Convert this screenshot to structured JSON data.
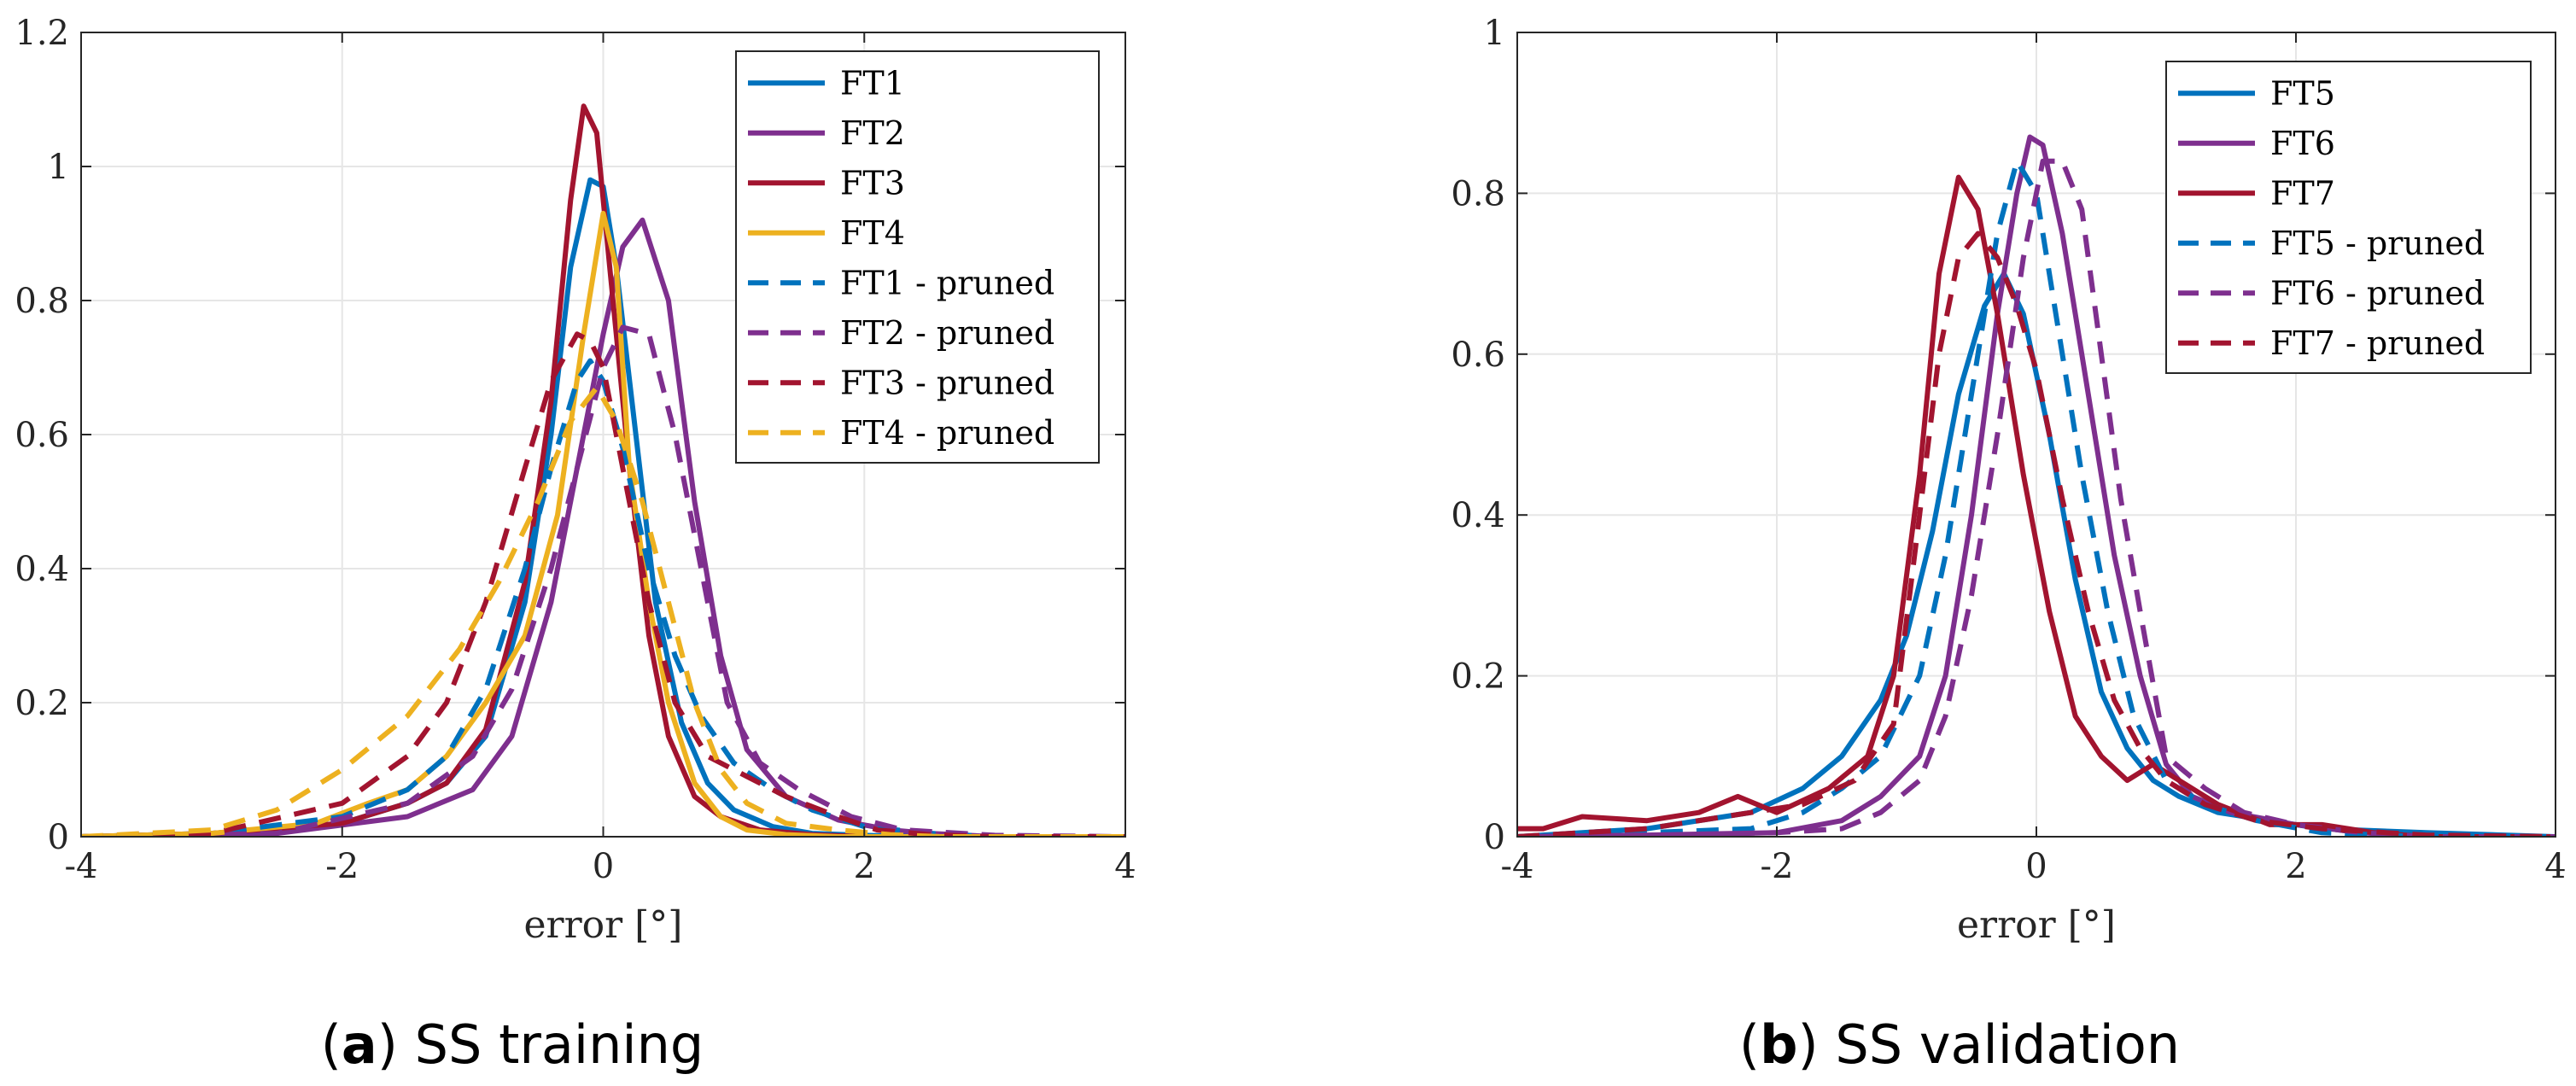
{
  "figure": {
    "captions": [
      {
        "letter": "a",
        "open": "(",
        "close": ")",
        "text": " SS training"
      },
      {
        "letter": "b",
        "open": "(",
        "close": ")",
        "text": " SS validation"
      }
    ]
  },
  "chart_data": [
    {
      "type": "line",
      "title": "",
      "xlabel": "error [°]",
      "ylabel": "",
      "xlim": [
        -4,
        4
      ],
      "ylim": [
        0,
        1.2
      ],
      "xticks": [
        "-4",
        "-2",
        "0",
        "2",
        "4"
      ],
      "yticks": [
        "0",
        "0.2",
        "0.4",
        "0.6",
        "0.8",
        "1",
        "1.2"
      ],
      "grid": true,
      "legend_position": "top-right",
      "series": [
        {
          "name": "FT1",
          "color": "#0072BD",
          "dash": "solid",
          "x": [
            -4,
            -3,
            -2,
            -1.5,
            -1.2,
            -0.9,
            -0.6,
            -0.4,
            -0.25,
            -0.1,
            0,
            0.1,
            0.25,
            0.4,
            0.6,
            0.8,
            1.0,
            1.3,
            1.6,
            2.0,
            2.5,
            3,
            4
          ],
          "y": [
            0,
            0.005,
            0.02,
            0.05,
            0.08,
            0.15,
            0.35,
            0.6,
            0.85,
            0.98,
            0.97,
            0.85,
            0.6,
            0.35,
            0.17,
            0.08,
            0.04,
            0.015,
            0.005,
            0.002,
            0,
            0,
            0
          ]
        },
        {
          "name": "FT2",
          "color": "#7E2F8E",
          "dash": "solid",
          "x": [
            -4,
            -2.5,
            -1.5,
            -1.0,
            -0.7,
            -0.4,
            -0.2,
            0,
            0.15,
            0.3,
            0.5,
            0.7,
            0.9,
            1.1,
            1.4,
            1.8,
            2.2,
            2.5,
            3,
            4
          ],
          "y": [
            0,
            0.005,
            0.03,
            0.07,
            0.15,
            0.35,
            0.55,
            0.75,
            0.88,
            0.92,
            0.8,
            0.5,
            0.27,
            0.13,
            0.06,
            0.025,
            0.01,
            0.005,
            0,
            0
          ]
        },
        {
          "name": "FT3",
          "color": "#A2142F",
          "dash": "solid",
          "x": [
            -4,
            -3,
            -2,
            -1.5,
            -1.2,
            -0.9,
            -0.6,
            -0.4,
            -0.25,
            -0.15,
            -0.05,
            0.05,
            0.2,
            0.35,
            0.5,
            0.7,
            0.9,
            1.2,
            1.6,
            2.0,
            3,
            4
          ],
          "y": [
            0,
            0.005,
            0.02,
            0.05,
            0.08,
            0.16,
            0.38,
            0.65,
            0.95,
            1.09,
            1.05,
            0.85,
            0.55,
            0.3,
            0.15,
            0.06,
            0.03,
            0.01,
            0.003,
            0,
            0,
            0
          ]
        },
        {
          "name": "FT4",
          "color": "#EDB120",
          "dash": "solid",
          "x": [
            -4,
            -3,
            -2.2,
            -1.8,
            -1.5,
            -1.2,
            -0.9,
            -0.6,
            -0.35,
            -0.15,
            0,
            0.1,
            0.2,
            0.35,
            0.5,
            0.7,
            0.9,
            1.1,
            1.4,
            1.8,
            2.5,
            4
          ],
          "y": [
            0,
            0.005,
            0.02,
            0.05,
            0.07,
            0.12,
            0.2,
            0.3,
            0.48,
            0.75,
            0.93,
            0.85,
            0.55,
            0.35,
            0.2,
            0.08,
            0.03,
            0.01,
            0.003,
            0,
            0,
            0
          ]
        },
        {
          "name": "FT1 - pruned",
          "color": "#0072BD",
          "dash": "dashed",
          "x": [
            -4,
            -3,
            -2,
            -1.5,
            -1.2,
            -0.9,
            -0.6,
            -0.4,
            -0.2,
            -0.1,
            0,
            0.15,
            0.35,
            0.55,
            0.75,
            1.0,
            1.3,
            1.6,
            2.0,
            2.5,
            3,
            4
          ],
          "y": [
            0,
            0.005,
            0.03,
            0.07,
            0.12,
            0.22,
            0.4,
            0.55,
            0.68,
            0.71,
            0.68,
            0.58,
            0.4,
            0.27,
            0.18,
            0.11,
            0.07,
            0.04,
            0.015,
            0.005,
            0,
            0
          ]
        },
        {
          "name": "FT2 - pruned",
          "color": "#7E2F8E",
          "dash": "dashed",
          "x": [
            -4,
            -2.5,
            -1.5,
            -1.0,
            -0.7,
            -0.4,
            -0.2,
            0,
            0.15,
            0.35,
            0.55,
            0.75,
            0.95,
            1.2,
            1.5,
            1.9,
            2.3,
            3,
            4
          ],
          "y": [
            0,
            0.005,
            0.05,
            0.12,
            0.22,
            0.4,
            0.55,
            0.7,
            0.76,
            0.75,
            0.6,
            0.4,
            0.2,
            0.11,
            0.07,
            0.03,
            0.01,
            0.002,
            0
          ]
        },
        {
          "name": "FT3 - pruned",
          "color": "#A2142F",
          "dash": "dashed",
          "x": [
            -4,
            -3,
            -2,
            -1.5,
            -1.2,
            -0.9,
            -0.6,
            -0.4,
            -0.2,
            -0.1,
            0,
            0.15,
            0.35,
            0.55,
            0.8,
            1.1,
            1.4,
            1.8,
            2.1,
            2.5,
            3,
            4
          ],
          "y": [
            0,
            0.005,
            0.05,
            0.12,
            0.2,
            0.35,
            0.55,
            0.68,
            0.75,
            0.74,
            0.7,
            0.55,
            0.35,
            0.2,
            0.12,
            0.09,
            0.06,
            0.03,
            0.01,
            0.003,
            0,
            0
          ]
        },
        {
          "name": "FT4 - pruned",
          "color": "#EDB120",
          "dash": "dashed",
          "x": [
            -4,
            -3,
            -2.5,
            -2,
            -1.5,
            -1.1,
            -0.8,
            -0.5,
            -0.25,
            -0.05,
            0.1,
            0.3,
            0.5,
            0.7,
            0.9,
            1.1,
            1.4,
            1.8,
            2.2,
            2.6,
            4
          ],
          "y": [
            0,
            0.01,
            0.04,
            0.1,
            0.18,
            0.28,
            0.38,
            0.5,
            0.62,
            0.67,
            0.62,
            0.5,
            0.35,
            0.2,
            0.1,
            0.05,
            0.02,
            0.01,
            0.003,
            0,
            0
          ]
        }
      ]
    },
    {
      "type": "line",
      "title": "",
      "xlabel": "error [°]",
      "ylabel": "",
      "xlim": [
        -4,
        4
      ],
      "ylim": [
        0,
        1
      ],
      "xticks": [
        "-4",
        "-2",
        "0",
        "2",
        "4"
      ],
      "yticks": [
        "0",
        "0.2",
        "0.4",
        "0.6",
        "0.8",
        "1"
      ],
      "grid": true,
      "legend_position": "top-right",
      "series": [
        {
          "name": "FT5",
          "color": "#0072BD",
          "dash": "solid",
          "x": [
            -4,
            -3,
            -2.2,
            -1.8,
            -1.5,
            -1.2,
            -1.0,
            -0.8,
            -0.6,
            -0.4,
            -0.25,
            -0.1,
            0.1,
            0.3,
            0.5,
            0.7,
            0.9,
            1.1,
            1.4,
            1.8,
            2.2,
            3,
            4
          ],
          "y": [
            0,
            0.01,
            0.03,
            0.06,
            0.1,
            0.17,
            0.25,
            0.38,
            0.55,
            0.66,
            0.7,
            0.65,
            0.5,
            0.32,
            0.18,
            0.11,
            0.07,
            0.05,
            0.03,
            0.02,
            0.01,
            0.005,
            0
          ]
        },
        {
          "name": "FT6",
          "color": "#7E2F8E",
          "dash": "solid",
          "x": [
            -4,
            -3,
            -2,
            -1.5,
            -1.2,
            -0.9,
            -0.7,
            -0.5,
            -0.3,
            -0.15,
            -0.05,
            0.05,
            0.2,
            0.4,
            0.6,
            0.8,
            1.0,
            1.2,
            1.5,
            2.0,
            2.5,
            3,
            4
          ],
          "y": [
            0,
            0.002,
            0.005,
            0.02,
            0.05,
            0.1,
            0.2,
            0.4,
            0.65,
            0.8,
            0.87,
            0.86,
            0.75,
            0.55,
            0.35,
            0.2,
            0.09,
            0.05,
            0.03,
            0.015,
            0.005,
            0,
            0
          ]
        },
        {
          "name": "FT7",
          "color": "#A2142F",
          "dash": "solid",
          "x": [
            -4,
            -3.8,
            -3.5,
            -3,
            -2.6,
            -2.3,
            -2,
            -1.6,
            -1.3,
            -1.1,
            -0.9,
            -0.75,
            -0.6,
            -0.45,
            -0.3,
            -0.1,
            0.1,
            0.3,
            0.5,
            0.7,
            0.9,
            1.1,
            1.4,
            1.8,
            2.2,
            2.6,
            3,
            4
          ],
          "y": [
            0.01,
            0.01,
            0.025,
            0.02,
            0.03,
            0.05,
            0.03,
            0.06,
            0.1,
            0.2,
            0.45,
            0.7,
            0.82,
            0.78,
            0.65,
            0.45,
            0.28,
            0.15,
            0.1,
            0.07,
            0.09,
            0.07,
            0.04,
            0.015,
            0.015,
            0.005,
            0,
            0
          ]
        },
        {
          "name": "FT5 - pruned",
          "color": "#0072BD",
          "dash": "dashed",
          "x": [
            -4,
            -3,
            -2.2,
            -1.8,
            -1.5,
            -1.2,
            -0.9,
            -0.7,
            -0.5,
            -0.3,
            -0.15,
            0,
            0.15,
            0.35,
            0.55,
            0.75,
            1.0,
            1.3,
            1.7,
            2.2,
            3,
            4
          ],
          "y": [
            0,
            0.005,
            0.01,
            0.03,
            0.06,
            0.1,
            0.2,
            0.35,
            0.55,
            0.75,
            0.84,
            0.8,
            0.65,
            0.45,
            0.28,
            0.15,
            0.07,
            0.04,
            0.02,
            0.005,
            0,
            0
          ]
        },
        {
          "name": "FT6 - pruned",
          "color": "#7E2F8E",
          "dash": "dashed",
          "x": [
            -4,
            -3,
            -2,
            -1.5,
            -1.2,
            -0.9,
            -0.7,
            -0.5,
            -0.3,
            -0.1,
            0.05,
            0.2,
            0.35,
            0.5,
            0.65,
            0.8,
            1.0,
            1.3,
            1.6,
            2.0,
            2.5,
            3,
            4
          ],
          "y": [
            0,
            0.002,
            0.005,
            0.01,
            0.03,
            0.07,
            0.15,
            0.3,
            0.5,
            0.72,
            0.84,
            0.84,
            0.78,
            0.6,
            0.42,
            0.28,
            0.1,
            0.06,
            0.03,
            0.015,
            0.005,
            0,
            0
          ]
        },
        {
          "name": "FT7 - pruned",
          "color": "#A2142F",
          "dash": "dashed",
          "x": [
            -4,
            -3,
            -2.2,
            -1.8,
            -1.4,
            -1.1,
            -0.9,
            -0.75,
            -0.6,
            -0.45,
            -0.3,
            -0.15,
            0,
            0.2,
            0.4,
            0.6,
            0.8,
            1.0,
            1.3,
            1.7,
            2.2,
            3,
            4
          ],
          "y": [
            0,
            0.01,
            0.03,
            0.04,
            0.07,
            0.14,
            0.4,
            0.6,
            0.72,
            0.75,
            0.72,
            0.66,
            0.58,
            0.42,
            0.28,
            0.17,
            0.11,
            0.07,
            0.04,
            0.02,
            0.01,
            0.002,
            0
          ]
        }
      ]
    }
  ]
}
